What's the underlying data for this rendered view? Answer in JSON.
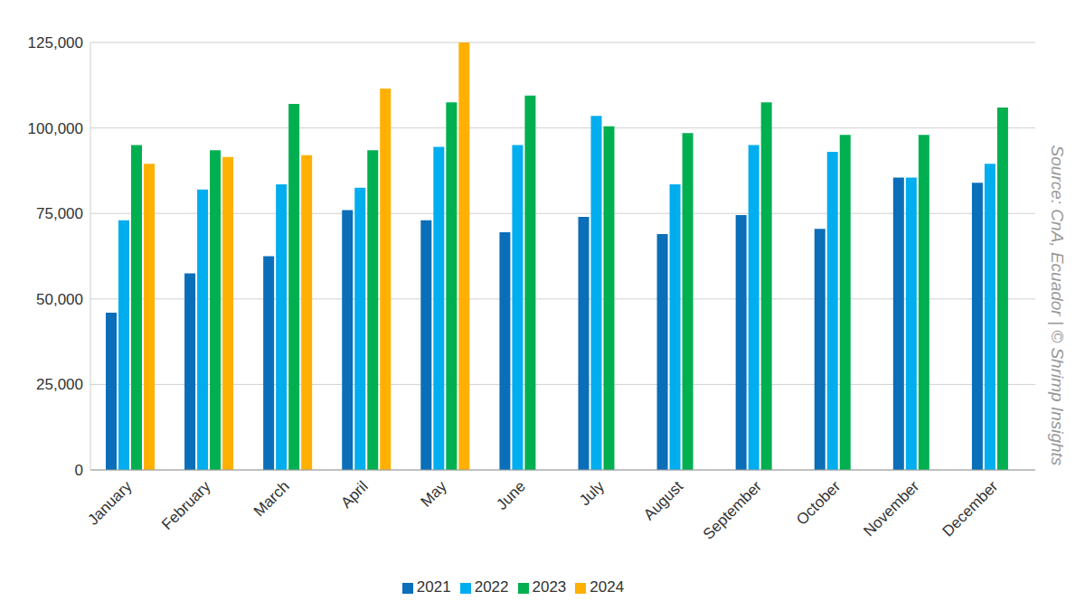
{
  "chart_data": {
    "type": "bar",
    "source": "Source: CnA, Ecuador | © Shrimp Insights",
    "categories": [
      "January",
      "February",
      "March",
      "April",
      "May",
      "June",
      "July",
      "August",
      "September",
      "October",
      "November",
      "December"
    ],
    "series": [
      {
        "name": "2021",
        "color": "#0b6eb8",
        "values": [
          46000,
          57500,
          62500,
          76000,
          73000,
          69500,
          74000,
          69000,
          74500,
          70500,
          85500,
          84000
        ]
      },
      {
        "name": "2022",
        "color": "#00adef",
        "values": [
          73000,
          82000,
          83500,
          82500,
          94500,
          95000,
          103500,
          83500,
          95000,
          93000,
          85500,
          89500
        ]
      },
      {
        "name": "2023",
        "color": "#00b050",
        "values": [
          95000,
          93500,
          107000,
          93500,
          107500,
          109500,
          100500,
          98500,
          107500,
          98000,
          98000,
          106000
        ]
      },
      {
        "name": "2024",
        "color": "#ffb000",
        "values": [
          89500,
          91500,
          92000,
          111500,
          125000,
          null,
          null,
          null,
          null,
          null,
          null,
          null
        ]
      }
    ],
    "ylim": [
      0,
      125000
    ],
    "yticks": [
      0,
      {
        "value": 25000,
        "label": "25,000"
      },
      {
        "value": 50000,
        "label": "50,000"
      },
      {
        "value": 75000,
        "label": "75,000"
      },
      {
        "value": 100000,
        "label": "100,000"
      },
      {
        "value": 125000,
        "label": "125,000"
      }
    ],
    "grid": true,
    "legend": "bottom"
  }
}
